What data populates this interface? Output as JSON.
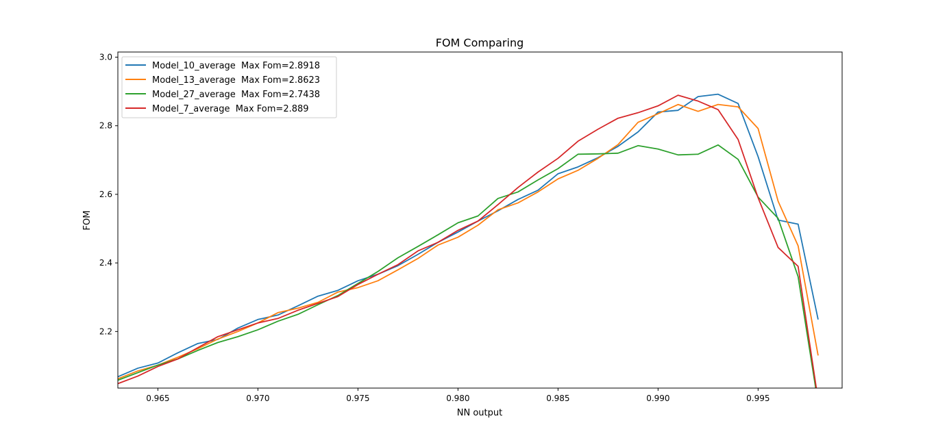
{
  "chart_data": {
    "type": "line",
    "title": "FOM Comparing",
    "xlabel": "NN output",
    "ylabel": "FOM",
    "xlim": [
      0.963,
      0.9992
    ],
    "ylim": [
      2.035,
      3.015
    ],
    "xticks": [
      0.965,
      0.97,
      0.975,
      0.98,
      0.985,
      0.99,
      0.995
    ],
    "xtick_labels": [
      "0.965",
      "0.970",
      "0.975",
      "0.980",
      "0.985",
      "0.990",
      "0.995"
    ],
    "yticks": [
      2.2,
      2.4,
      2.6,
      2.8,
      3.0
    ],
    "ytick_labels": [
      "2.2",
      "2.4",
      "2.6",
      "2.8",
      "3.0"
    ],
    "grid": false,
    "legend_position": "top-left",
    "x": [
      0.963,
      0.964,
      0.965,
      0.966,
      0.967,
      0.968,
      0.969,
      0.97,
      0.971,
      0.972,
      0.973,
      0.974,
      0.975,
      0.976,
      0.977,
      0.978,
      0.979,
      0.98,
      0.981,
      0.982,
      0.983,
      0.984,
      0.985,
      0.986,
      0.987,
      0.988,
      0.989,
      0.99,
      0.991,
      0.992,
      0.993,
      0.994,
      0.995,
      0.996,
      0.997,
      0.998
    ],
    "series": [
      {
        "name": "Model_10_average  Max Fom=2.8918",
        "color": "#1f77b4",
        "values": [
          2.068,
          2.093,
          2.108,
          2.138,
          2.165,
          2.177,
          2.21,
          2.235,
          2.248,
          2.275,
          2.303,
          2.32,
          2.348,
          2.367,
          2.392,
          2.425,
          2.46,
          2.49,
          2.522,
          2.552,
          2.585,
          2.612,
          2.66,
          2.68,
          2.707,
          2.74,
          2.782,
          2.84,
          2.845,
          2.885,
          2.892,
          2.865,
          2.71,
          2.525,
          2.513,
          2.235
        ]
      },
      {
        "name": "Model_13_average  Max Fom=2.8623",
        "color": "#ff7f0e",
        "values": [
          2.062,
          2.085,
          2.102,
          2.125,
          2.15,
          2.178,
          2.2,
          2.225,
          2.255,
          2.268,
          2.285,
          2.315,
          2.328,
          2.348,
          2.38,
          2.413,
          2.452,
          2.475,
          2.51,
          2.555,
          2.575,
          2.607,
          2.645,
          2.67,
          2.705,
          2.745,
          2.81,
          2.835,
          2.862,
          2.842,
          2.862,
          2.855,
          2.792,
          2.58,
          2.45,
          2.13
        ]
      },
      {
        "name": "Model_27_average  Max Fom=2.7438",
        "color": "#2ca02c",
        "values": [
          2.058,
          2.08,
          2.102,
          2.12,
          2.145,
          2.168,
          2.185,
          2.205,
          2.23,
          2.25,
          2.278,
          2.305,
          2.34,
          2.375,
          2.415,
          2.448,
          2.482,
          2.517,
          2.537,
          2.588,
          2.607,
          2.642,
          2.675,
          2.717,
          2.718,
          2.72,
          2.742,
          2.732,
          2.715,
          2.717,
          2.744,
          2.702,
          2.592,
          2.53,
          2.36,
          1.99
        ]
      },
      {
        "name": "Model_7_average  Max Fom=2.889",
        "color": "#d62728",
        "values": [
          2.048,
          2.07,
          2.098,
          2.12,
          2.153,
          2.185,
          2.205,
          2.225,
          2.238,
          2.262,
          2.282,
          2.302,
          2.337,
          2.367,
          2.395,
          2.435,
          2.46,
          2.495,
          2.522,
          2.57,
          2.62,
          2.665,
          2.705,
          2.755,
          2.79,
          2.822,
          2.838,
          2.858,
          2.889,
          2.872,
          2.847,
          2.76,
          2.59,
          2.445,
          2.39,
          2.0
        ]
      }
    ]
  }
}
